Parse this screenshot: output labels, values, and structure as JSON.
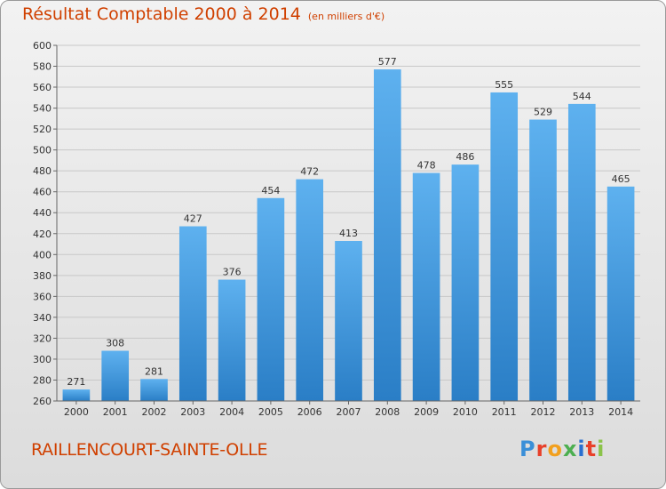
{
  "header": {
    "title": "Résultat Comptable 2000 à 2014",
    "subtitle": "(en milliers d'€)"
  },
  "footer": {
    "commune": "RAILLENCOURT-SAINTE-OLLE",
    "logo_text": "Proxiti",
    "logo_colors": [
      "#3a8fd8",
      "#e8402a",
      "#f2a01e",
      "#4caf50",
      "#2a6fd0",
      "#e8402a",
      "#8bc34a"
    ]
  },
  "chart_data": {
    "type": "bar",
    "title": "Résultat Comptable 2000 à 2014",
    "subtitle": "(en milliers d'€)",
    "categories": [
      "2000",
      "2001",
      "2002",
      "2003",
      "2004",
      "2005",
      "2006",
      "2007",
      "2008",
      "2009",
      "2010",
      "2011",
      "2012",
      "2013",
      "2014"
    ],
    "values": [
      271,
      308,
      281,
      427,
      376,
      454,
      472,
      413,
      577,
      478,
      486,
      555,
      529,
      544,
      465
    ],
    "ylim": [
      260,
      600
    ],
    "yticks": [
      260,
      280,
      300,
      320,
      340,
      360,
      380,
      400,
      420,
      440,
      460,
      480,
      500,
      520,
      540,
      560,
      580,
      600
    ],
    "grid": true,
    "bar_color": "#3a8fd8",
    "bar_color_light": "#5aaeee",
    "bar_color_dark": "#2a78c0"
  }
}
